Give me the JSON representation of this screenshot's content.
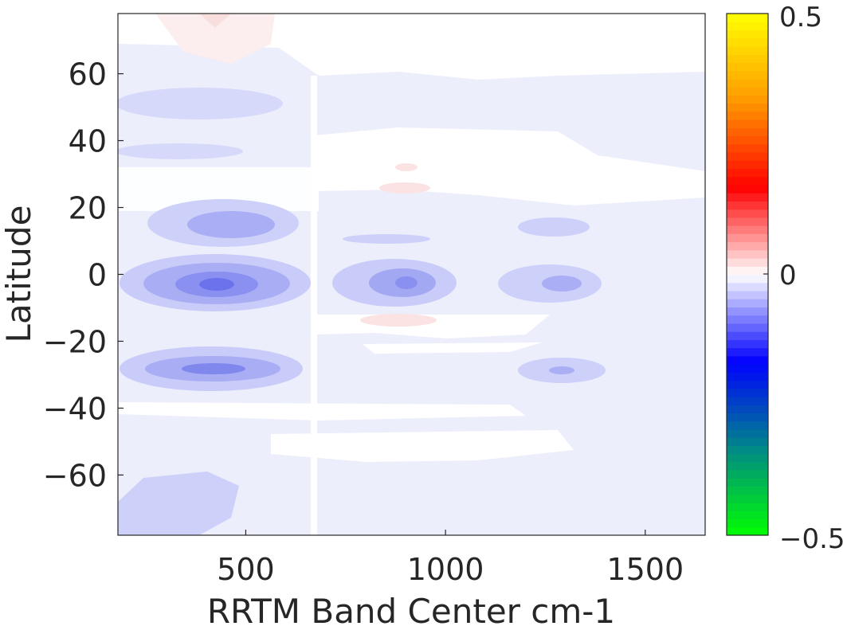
{
  "chart_data": {
    "type": "heatmap",
    "title": "",
    "xlabel": "RRTM Band Center cm-1",
    "ylabel": "Latitude",
    "xlim": [
      180,
      1650
    ],
    "ylim": [
      -78,
      78
    ],
    "x_ticks": [
      500,
      1000,
      1500
    ],
    "x_tick_labels": [
      "500",
      "1000",
      "1500"
    ],
    "y_ticks": [
      60,
      40,
      20,
      0,
      -20,
      -40,
      -60
    ],
    "y_tick_labels": [
      "60",
      "40",
      "20",
      "0",
      "−20",
      "−40",
      "−60"
    ],
    "colorbar": {
      "min": -0.5,
      "max": 0.5,
      "tick_labels": [
        "0.5",
        "0",
        "−0.5"
      ],
      "colors_low_to_high": [
        "#00ff00",
        "#008888",
        "#0000ff",
        "#ffffff",
        "#ff0000",
        "#ff9900",
        "#ffff00"
      ]
    },
    "features": [
      {
        "x": 430,
        "y": -3,
        "value": -0.12
      },
      {
        "x": 430,
        "y": -28,
        "value": -0.12
      },
      {
        "x": 430,
        "y": 15,
        "value": -0.08
      },
      {
        "x": 890,
        "y": -3,
        "value": -0.09
      },
      {
        "x": 1290,
        "y": -3,
        "value": -0.07
      },
      {
        "x": 430,
        "y": 50,
        "value": -0.05
      },
      {
        "x": 1290,
        "y": -28,
        "value": -0.04
      },
      {
        "x": 280,
        "y": 75,
        "value": 0.02
      },
      {
        "x": 890,
        "y": -13,
        "value": 0.02
      },
      {
        "x": 890,
        "y": 25,
        "value": 0.02
      }
    ]
  }
}
